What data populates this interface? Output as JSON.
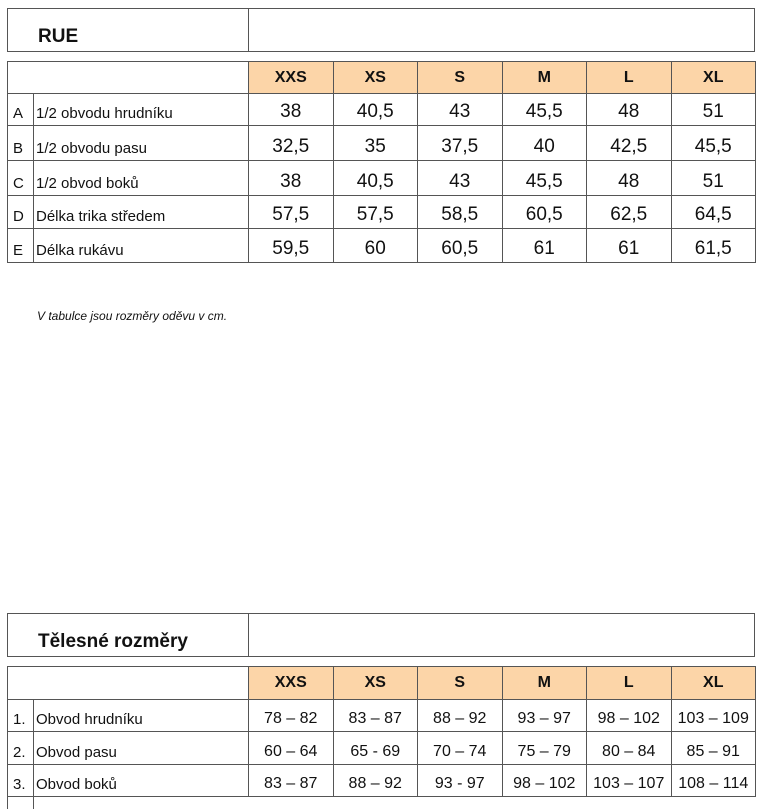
{
  "garment_table": {
    "title": "RUE",
    "sizes": [
      "XXS",
      "XS",
      "S",
      "M",
      "L",
      "XL"
    ],
    "rows": [
      {
        "letter": "A",
        "label": "1/2 obvodu hrudníku",
        "values": [
          "38",
          "40,5",
          "43",
          "45,5",
          "48",
          "51"
        ]
      },
      {
        "letter": "B",
        "label": "1/2 obvodu pasu",
        "values": [
          "32,5",
          "35",
          "37,5",
          "40",
          "42,5",
          "45,5"
        ]
      },
      {
        "letter": "C",
        "label": "1/2 obvod boků",
        "values": [
          "38",
          "40,5",
          "43",
          "45,5",
          "48",
          "51"
        ]
      },
      {
        "letter": "D",
        "label": "Délka trika středem",
        "values": [
          "57,5",
          "57,5",
          "58,5",
          "60,5",
          "62,5",
          "64,5"
        ]
      },
      {
        "letter": "E",
        "label": "Délka rukávu",
        "values": [
          "59,5",
          "60",
          "60,5",
          "61",
          "61",
          "61,5"
        ]
      }
    ]
  },
  "note": "V tabulce jsou rozměry oděvu v cm.",
  "body_table": {
    "title": "Tělesné rozměry",
    "sizes": [
      "XXS",
      "XS",
      "S",
      "M",
      "L",
      "XL"
    ],
    "rows": [
      {
        "letter": "1.",
        "label": "Obvod hrudníku",
        "values": [
          "78 – 82",
          "83 – 87",
          "88 – 92",
          "93 – 97",
          "98 – 102",
          "103 – 109"
        ]
      },
      {
        "letter": "2.",
        "label": "Obvod pasu",
        "values": [
          "60 – 64",
          "65 - 69",
          "70 – 74",
          "75 – 79",
          "80 – 84",
          "85 – 91"
        ]
      },
      {
        "letter": "3.",
        "label": "Obvod boků",
        "values": [
          "83 – 87",
          "88 – 92",
          "93 - 97",
          "98 – 102",
          "103 – 107",
          "108 – 114"
        ]
      }
    ]
  },
  "colors": {
    "header_fill": "#fcd5a8"
  }
}
